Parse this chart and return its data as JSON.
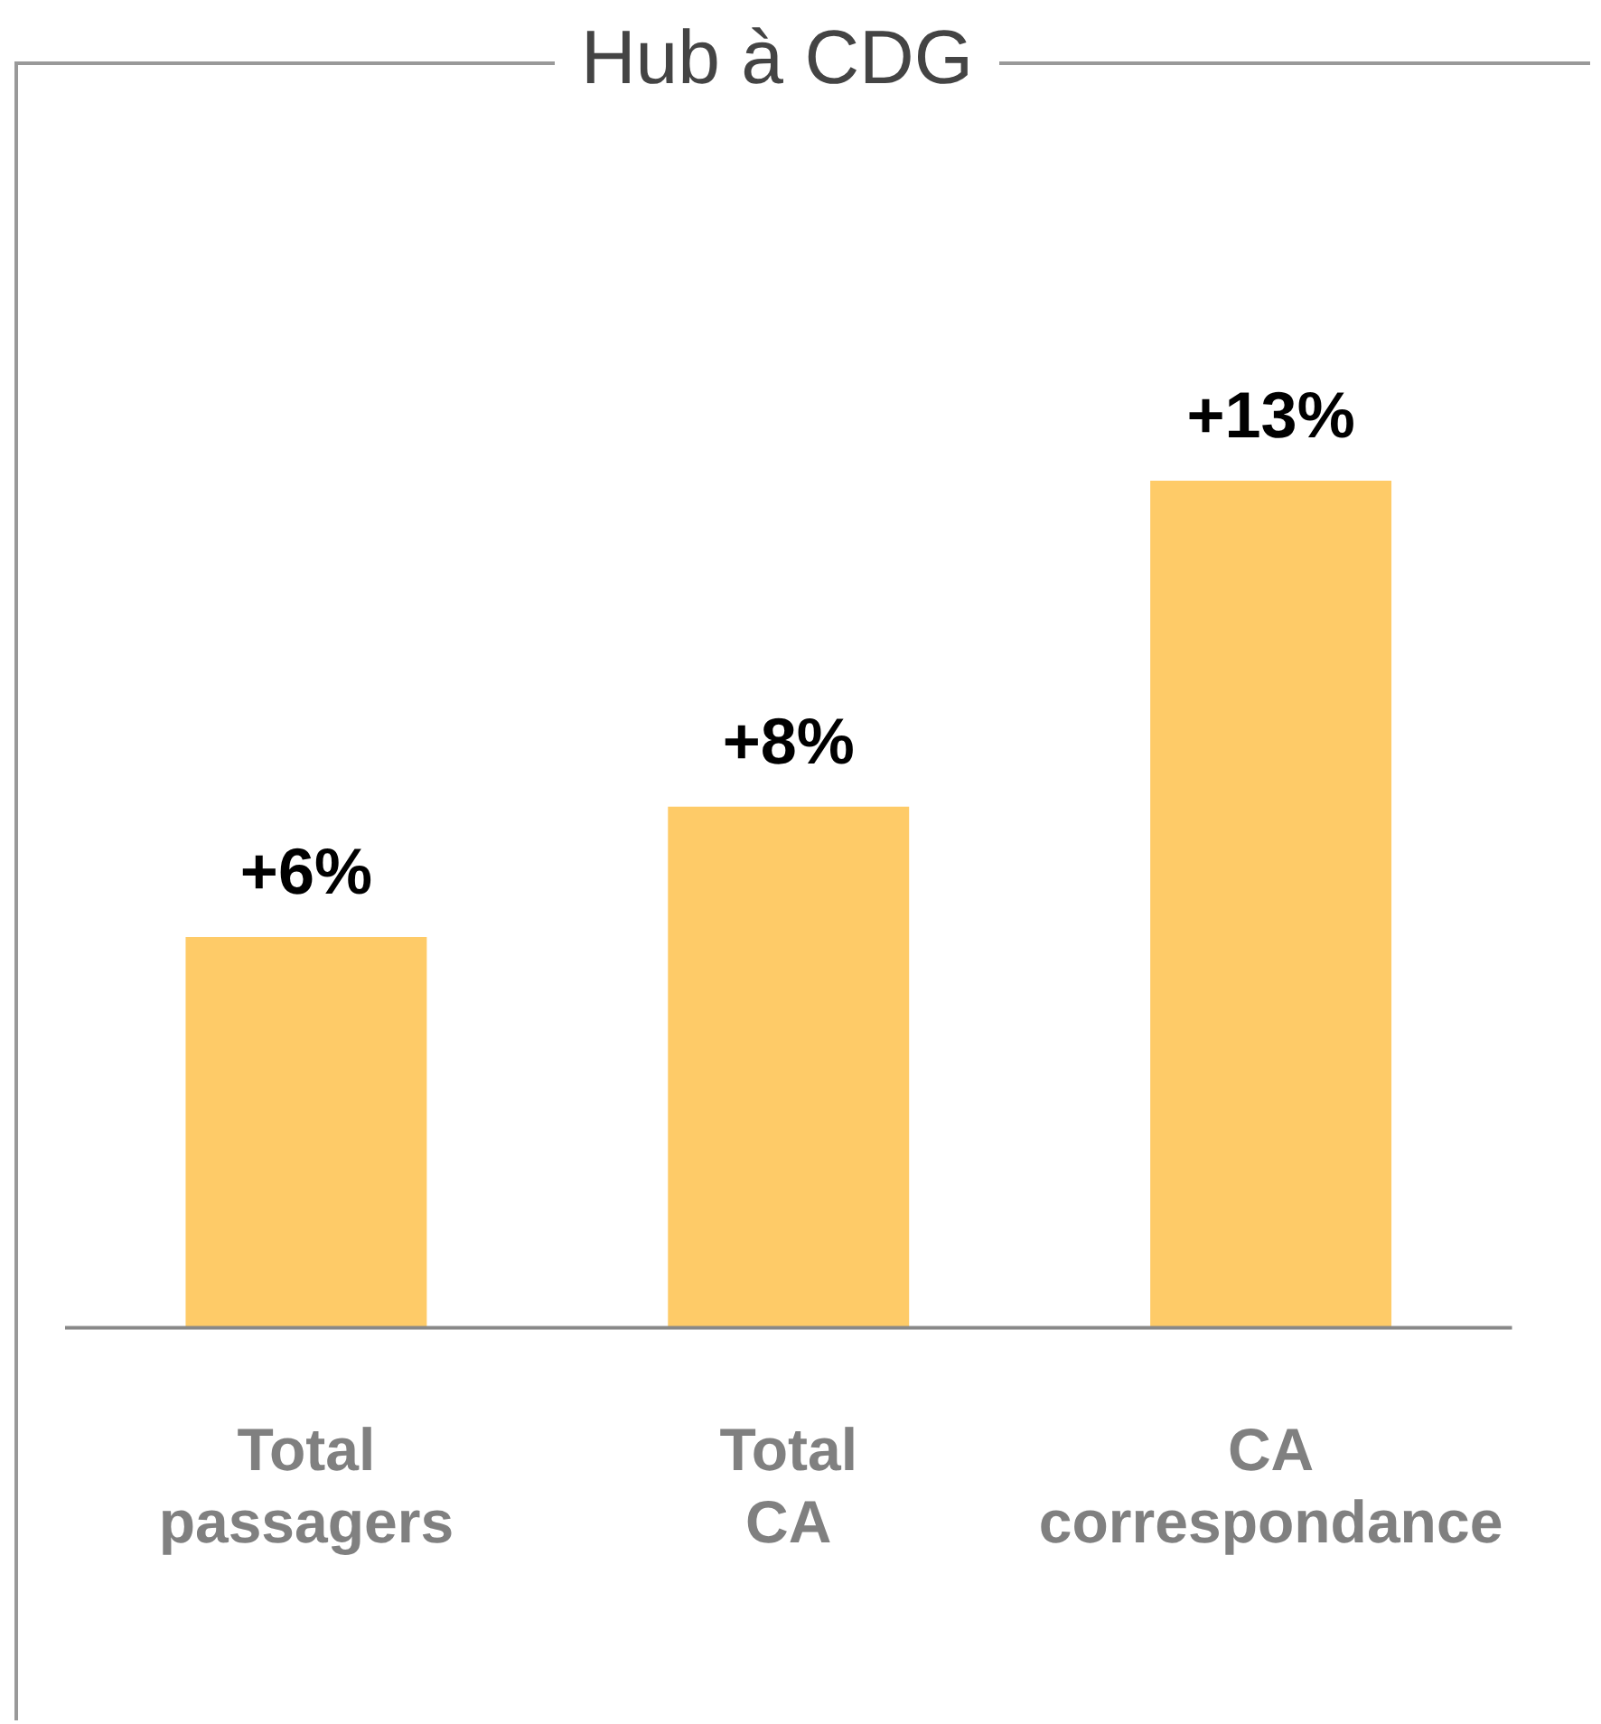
{
  "chart_data": {
    "type": "bar",
    "title": "Hub à CDG",
    "categories": [
      "Total passagers",
      "Total CA",
      "CA correspondance"
    ],
    "values": [
      6,
      8,
      13
    ],
    "value_labels": [
      "+6%",
      "+8%",
      "+13%"
    ],
    "color": "#fecb68",
    "relative": false,
    "grid": false,
    "legend": false
  }
}
